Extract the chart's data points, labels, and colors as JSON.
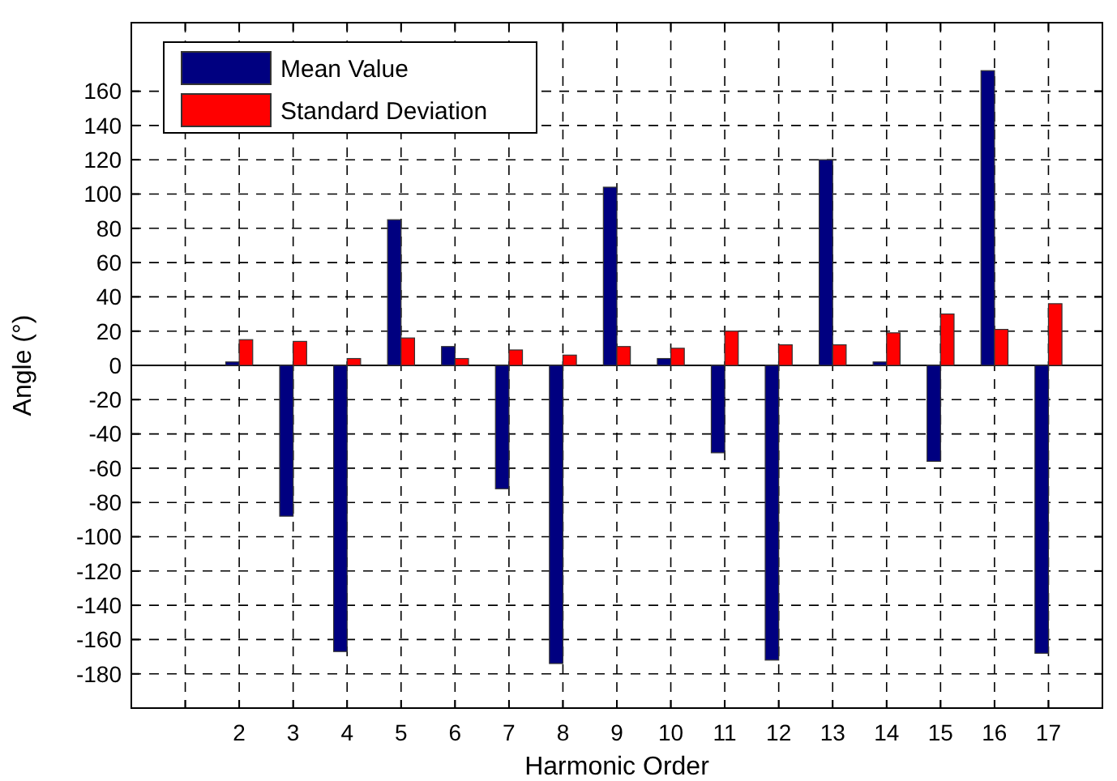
{
  "chart_data": {
    "type": "bar",
    "xlabel": "Harmonic Order",
    "ylabel": "Angle (°)",
    "categories": [
      null,
      "2",
      "3",
      "4",
      "5",
      "6",
      "7",
      "8",
      "9",
      "10",
      "11",
      "12",
      "13",
      "14",
      "15",
      "16",
      "17"
    ],
    "series": [
      {
        "name": "Mean Value",
        "color": "#000080",
        "values": [
          null,
          2,
          -88,
          -167,
          85,
          11,
          -72,
          -174,
          104,
          4,
          -51,
          -172,
          120,
          2,
          -56,
          172,
          -168
        ]
      },
      {
        "name": "Standard Deviation",
        "color": "#ff0000",
        "values": [
          null,
          15,
          14,
          4,
          16,
          4,
          9,
          6,
          11,
          10,
          20,
          12,
          12,
          19,
          30,
          21,
          36
        ]
      }
    ],
    "ylim": [
      -200,
      200
    ],
    "yticks": [
      -180,
      -160,
      -140,
      -120,
      -100,
      -80,
      -60,
      -40,
      -20,
      0,
      20,
      40,
      60,
      80,
      100,
      120,
      140,
      160
    ],
    "grid": true,
    "legend": "top left"
  }
}
